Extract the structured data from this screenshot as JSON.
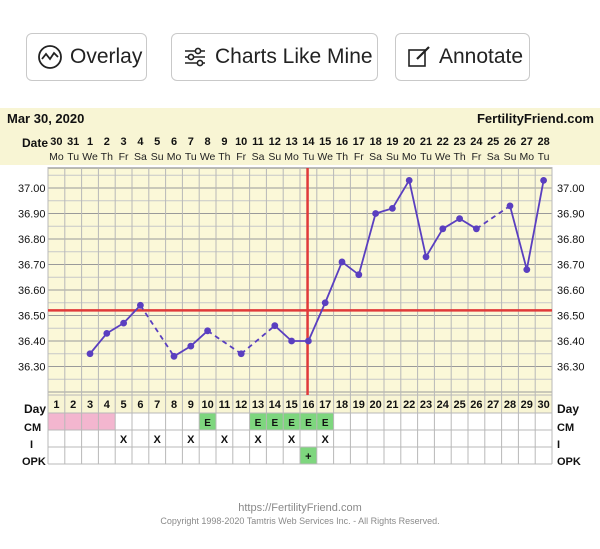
{
  "toolbar": {
    "overlay_label": "Overlay",
    "charts_like_mine_label": "Charts Like Mine",
    "annotate_label": "Annotate"
  },
  "chart_header": {
    "date_text": "Mar 30, 2020",
    "site_name": "FertilityFriend.com",
    "date_row_label": "Date",
    "day_row_label": "Day"
  },
  "footer": {
    "url": "https://FertilityFriend.com",
    "copyright": "Copyright 1998-2020 Tamtris Web Services Inc. - All Rights Reserved."
  },
  "colors": {
    "temp_line": "#5a3fc0",
    "coverline": "#e03a3a",
    "grid_bg": "#fbf8d8",
    "header_bg": "#f8f5d4",
    "cm_menstrual": "#f3b6cf",
    "cm_egg_white": "#7ed67e",
    "opk_positive": "#7ed67e"
  },
  "chart_data": {
    "type": "line",
    "title": "",
    "xlabel": "Day",
    "ylabel": "",
    "ylim": [
      36.2,
      37.1
    ],
    "y_ticks": [
      "37.00",
      "36.90",
      "36.80",
      "36.70",
      "36.60",
      "36.50",
      "36.40",
      "36.30"
    ],
    "y_tick_values": [
      37.0,
      36.9,
      36.8,
      36.7,
      36.6,
      36.5,
      36.4,
      36.3
    ],
    "dates": [
      "30",
      "31",
      "1",
      "2",
      "3",
      "4",
      "5",
      "6",
      "7",
      "8",
      "9",
      "10",
      "11",
      "12",
      "13",
      "14",
      "15",
      "16",
      "17",
      "18",
      "19",
      "20",
      "21",
      "22",
      "23",
      "24",
      "25",
      "26",
      "27",
      "28"
    ],
    "weekdays": [
      "Mo",
      "Tu",
      "We",
      "Th",
      "Fr",
      "Sa",
      "Su",
      "Mo",
      "Tu",
      "We",
      "Th",
      "Fr",
      "Sa",
      "Su",
      "Mo",
      "Tu",
      "We",
      "Th",
      "Fr",
      "Sa",
      "Su",
      "Mo",
      "Tu",
      "We",
      "Th",
      "Fr",
      "Sa",
      "Su",
      "Mo",
      "Tu"
    ],
    "days": [
      "1",
      "2",
      "3",
      "4",
      "5",
      "6",
      "7",
      "8",
      "9",
      "10",
      "11",
      "12",
      "13",
      "14",
      "15",
      "16",
      "17",
      "18",
      "19",
      "20",
      "21",
      "22",
      "23",
      "24",
      "25",
      "26",
      "27",
      "28",
      "29",
      "30"
    ],
    "series": [
      {
        "values": [
          null,
          null,
          36.35,
          36.43,
          36.47,
          36.54,
          null,
          36.34,
          36.38,
          36.44,
          null,
          36.35,
          null,
          36.46,
          36.4,
          36.4,
          36.55,
          36.71,
          36.66,
          36.9,
          36.92,
          37.03,
          36.73,
          36.84,
          36.88,
          36.84,
          null,
          36.93,
          36.68,
          37.03
        ]
      }
    ],
    "coverline": 36.52,
    "ovulation_day": 16,
    "rows": {
      "cm_label": "CM",
      "i_label": "I",
      "opk_label": "OPK",
      "cm": [
        "M",
        "M",
        "M",
        "M",
        "",
        "",
        "",
        "",
        "",
        "E",
        "",
        "",
        "E",
        "E",
        "E",
        "E",
        "E",
        "",
        "",
        "",
        "",
        "",
        "",
        "",
        "",
        "",
        "",
        "",
        "",
        ""
      ],
      "intercourse": [
        "",
        "",
        "",
        "",
        "X",
        "",
        "X",
        "",
        "X",
        "",
        "X",
        "",
        "X",
        "",
        "X",
        "",
        "X",
        "",
        "",
        "",
        "",
        "",
        "",
        "",
        "",
        "",
        "",
        "",
        "",
        ""
      ],
      "opk": [
        "",
        "",
        "",
        "",
        "",
        "",
        "",
        "",
        "",
        "",
        "",
        "",
        "",
        "",
        "",
        "+",
        "",
        "",
        "",
        "",
        "",
        "",
        "",
        "",
        "",
        "",
        "",
        "",
        "",
        ""
      ]
    }
  }
}
